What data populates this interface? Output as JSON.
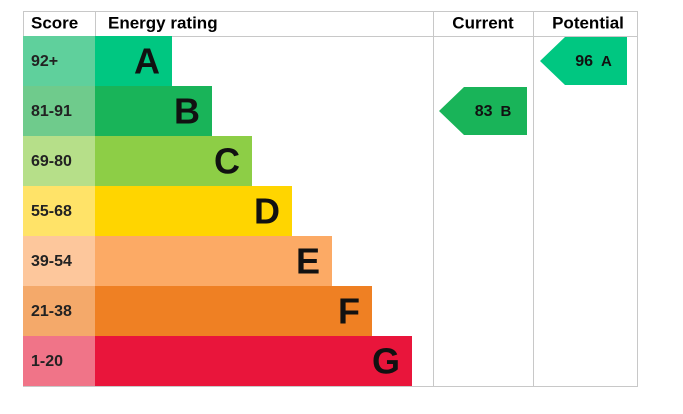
{
  "header": {
    "score": "Score",
    "rating": "Energy rating",
    "current": "Current",
    "potential": "Potential"
  },
  "bands": [
    {
      "score": "92+",
      "letter": "A",
      "color": "#00c781",
      "score_color": "#5fd09c"
    },
    {
      "score": "81-91",
      "letter": "B",
      "color": "#19b459",
      "score_color": "#6fcb8c"
    },
    {
      "score": "69-80",
      "letter": "C",
      "color": "#8dce46",
      "score_color": "#b6df89"
    },
    {
      "score": "55-68",
      "letter": "D",
      "color": "#ffd500",
      "score_color": "#ffe368"
    },
    {
      "score": "39-54",
      "letter": "E",
      "color": "#fcaa65",
      "score_color": "#fdc79c"
    },
    {
      "score": "21-38",
      "letter": "F",
      "color": "#ef8023",
      "score_color": "#f4a96a"
    },
    {
      "score": "1-20",
      "letter": "G",
      "color": "#e9153b",
      "score_color": "#f07488"
    }
  ],
  "current": {
    "value": 83,
    "letter": "B"
  },
  "potential": {
    "value": 96,
    "letter": "A"
  }
}
